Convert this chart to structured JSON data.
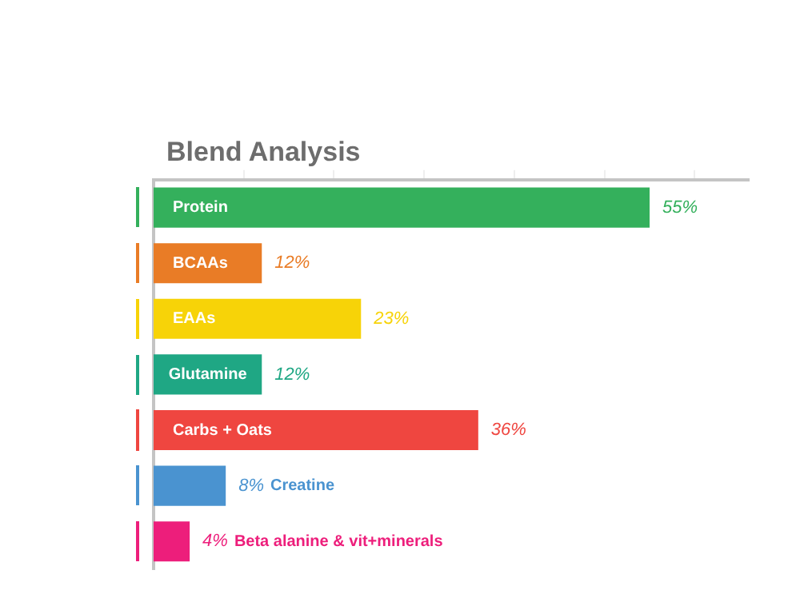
{
  "chart_data": {
    "type": "bar",
    "orientation": "horizontal",
    "title": "Blend Analysis",
    "categories": [
      "Protein",
      "BCAAs",
      "EAAs",
      "Glutamine",
      "Carbs + Oats",
      "Creatine",
      "Beta alanine & vit+minerals"
    ],
    "values": [
      55,
      12,
      23,
      12,
      36,
      8,
      4
    ],
    "colors": [
      "#34b05c",
      "#e97c26",
      "#f7d308",
      "#1fa784",
      "#ef4640",
      "#4a93d0",
      "#ed1e7b"
    ],
    "value_labels": [
      "55%",
      "12%",
      "23%",
      "12%",
      "36%",
      "8%",
      "4%"
    ],
    "xlim": [
      0,
      66
    ],
    "xticks": [
      {
        "value": 10,
        "label": null
      },
      {
        "value": 20,
        "label": null
      },
      {
        "value": 30,
        "label": null
      },
      {
        "value": 40,
        "label": null
      },
      {
        "value": 50,
        "label": null
      },
      {
        "value": 60,
        "label": null
      }
    ],
    "grid": false,
    "legend": false
  }
}
